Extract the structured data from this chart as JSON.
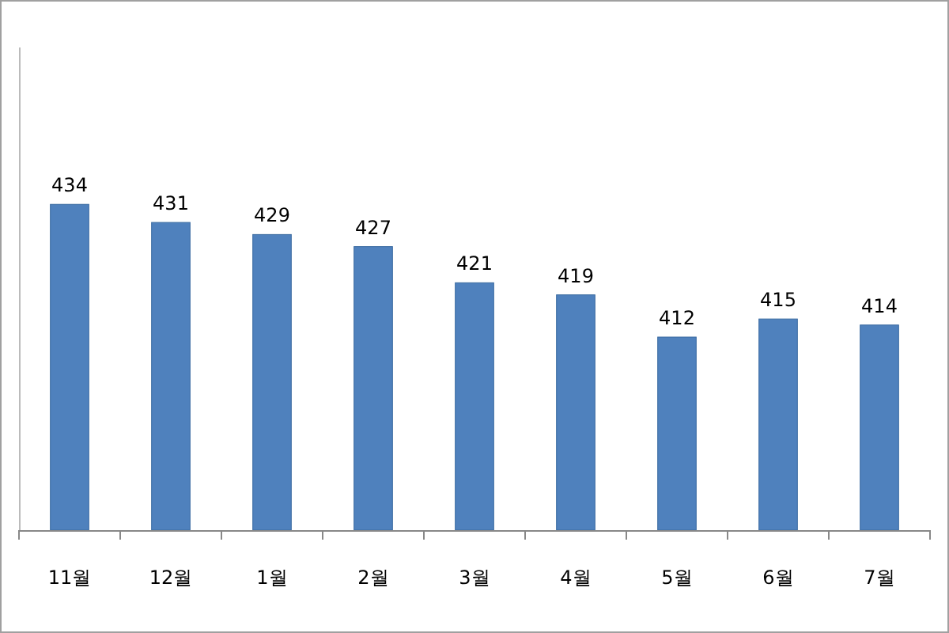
{
  "chart_data": {
    "type": "bar",
    "categories": [
      "11월",
      "12월",
      "1월",
      "2월",
      "3월",
      "4월",
      "5월",
      "6월",
      "7월"
    ],
    "values": [
      434,
      431,
      429,
      427,
      421,
      419,
      412,
      415,
      414
    ],
    "color": "#4f81bd",
    "data_labels": true,
    "ylim": [
      380,
      460
    ],
    "tick_labels": "x"
  }
}
